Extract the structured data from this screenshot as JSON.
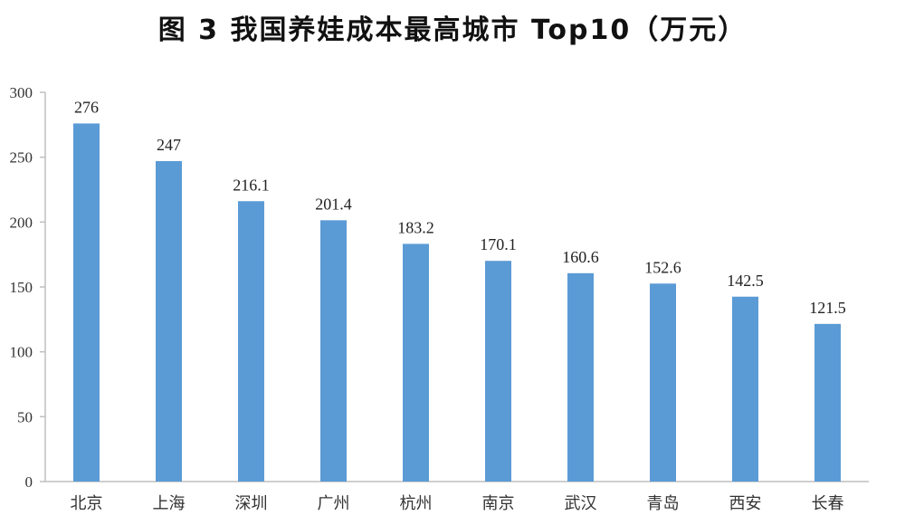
{
  "chart_data": {
    "type": "bar",
    "title": "图 3  我国养娃成本最高城市 Top10（万元）",
    "categories": [
      "北京",
      "上海",
      "深圳",
      "广州",
      "杭州",
      "南京",
      "武汉",
      "青岛",
      "西安",
      "长春"
    ],
    "values": [
      276,
      247,
      216.1,
      201.4,
      183.2,
      170.1,
      160.6,
      152.6,
      142.5,
      121.5
    ],
    "value_labels": [
      "276",
      "247",
      "216.1",
      "201.4",
      "183.2",
      "170.1",
      "160.6",
      "152.6",
      "142.5",
      "121.5"
    ],
    "ylim": [
      0,
      300
    ],
    "yticks": [
      0,
      50,
      100,
      150,
      200,
      250,
      300
    ],
    "xlabel": "",
    "ylabel": "",
    "grid": false,
    "legend": "none",
    "colors": {
      "bar": "#5b9bd5",
      "axis": "#bfbfbf"
    }
  }
}
